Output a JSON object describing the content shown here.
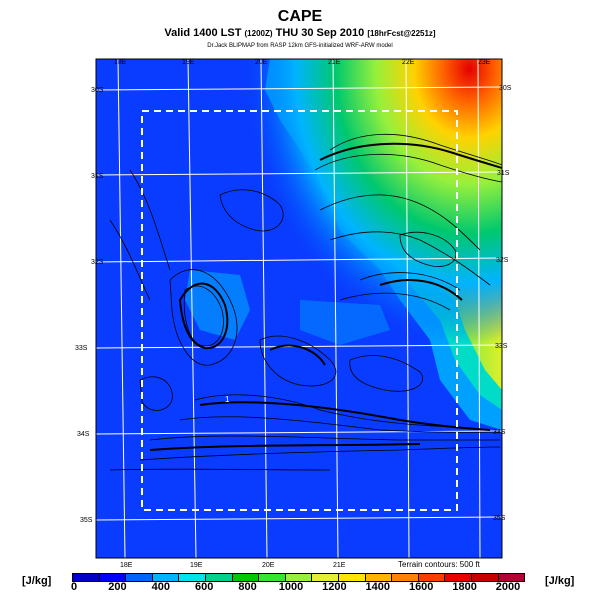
{
  "header": {
    "title": "CAPE",
    "valid_main": "Valid 1400 LST",
    "valid_utc": "(1200Z)",
    "valid_date": "THU 30 Sep 2010",
    "forecast": "[18hrFcst@2251z]",
    "credit": "Dr.Jack BLIPMAP from RASP 12km GFS-initialized WRF-ARW model"
  },
  "lon_labels_top": [
    "18E",
    "19E",
    "20E",
    "21E",
    "22E",
    "23E"
  ],
  "lon_labels_bottom": [
    "18E",
    "19E",
    "20E",
    "21E"
  ],
  "lat_labels_left": [
    "30S",
    "31S",
    "32S",
    "33S",
    "34S",
    "35S"
  ],
  "lat_labels_right": [
    "30S",
    "31S",
    "32S",
    "33S",
    "34S",
    "35S"
  ],
  "marker": "1",
  "terrain_note": "Terrain contours: 500 ft",
  "unit_left": "[J/kg]",
  "unit_right": "[J/kg]",
  "colorbar": {
    "ticks": [
      "0",
      "200",
      "400",
      "600",
      "800",
      "1000",
      "1200",
      "1400",
      "1600",
      "1800",
      "2000"
    ],
    "colors": [
      "#0000c8",
      "#0000ff",
      "#0064ff",
      "#00b4ff",
      "#00e6e6",
      "#00d28c",
      "#00c800",
      "#32e632",
      "#96f03c",
      "#e6f032",
      "#ffe600",
      "#ffb400",
      "#ff8200",
      "#ff3c00",
      "#e60000",
      "#c80000",
      "#b40032"
    ]
  }
}
